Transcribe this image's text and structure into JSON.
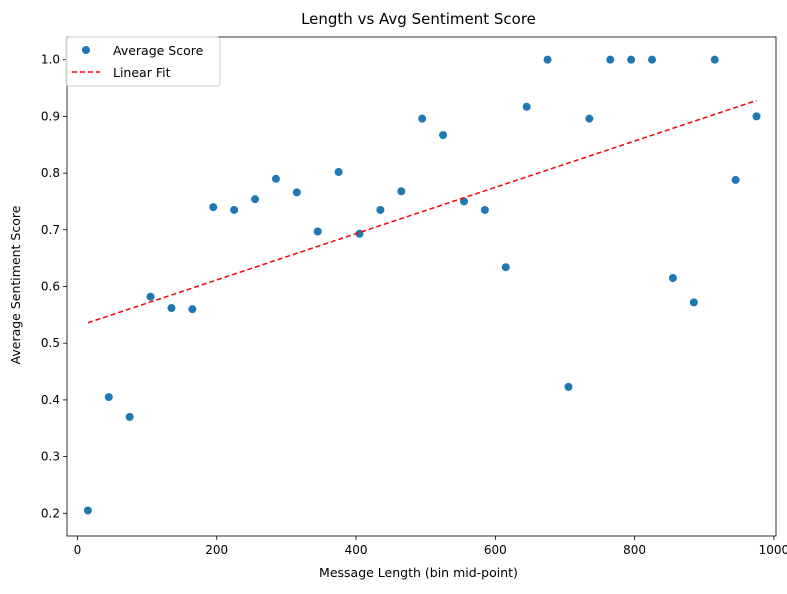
{
  "chart_data": {
    "type": "scatter",
    "title": "Length vs Avg Sentiment Score",
    "xlabel": "Message Length (bin mid-point)",
    "ylabel": "Average Sentiment Score",
    "xlim": [
      -15,
      1003
    ],
    "ylim": [
      0.16,
      1.04
    ],
    "xticks": [
      0,
      200,
      400,
      600,
      800,
      1000
    ],
    "yticks": [
      0.2,
      0.3,
      0.4,
      0.5,
      0.6,
      0.7,
      0.8,
      0.9,
      1.0
    ],
    "xtick_labels": [
      "0",
      "200",
      "400",
      "600",
      "800",
      "1000"
    ],
    "ytick_labels": [
      "0.2",
      "0.3",
      "0.4",
      "0.5",
      "0.6",
      "0.7",
      "0.8",
      "0.9",
      "1.0"
    ],
    "grid": false,
    "legend_position": "top-left",
    "series": [
      {
        "name": "Average Score",
        "kind": "scatter",
        "color": "#1f77b4",
        "points": [
          [
            15,
            0.205
          ],
          [
            45,
            0.405
          ],
          [
            75,
            0.37
          ],
          [
            105,
            0.582
          ],
          [
            135,
            0.562
          ],
          [
            165,
            0.56
          ],
          [
            195,
            0.74
          ],
          [
            225,
            0.735
          ],
          [
            255,
            0.754
          ],
          [
            285,
            0.79
          ],
          [
            315,
            0.766
          ],
          [
            345,
            0.697
          ],
          [
            375,
            0.802
          ],
          [
            405,
            0.693
          ],
          [
            435,
            0.735
          ],
          [
            465,
            0.768
          ],
          [
            495,
            0.896
          ],
          [
            525,
            0.867
          ],
          [
            555,
            0.75
          ],
          [
            585,
            0.735
          ],
          [
            615,
            0.634
          ],
          [
            645,
            0.917
          ],
          [
            675,
            1.0
          ],
          [
            705,
            0.423
          ],
          [
            735,
            0.896
          ],
          [
            765,
            1.0
          ],
          [
            795,
            1.0
          ],
          [
            825,
            1.0
          ],
          [
            855,
            0.615
          ],
          [
            885,
            0.572
          ],
          [
            915,
            1.0
          ],
          [
            945,
            0.788
          ],
          [
            975,
            0.9
          ]
        ]
      },
      {
        "name": "Linear Fit",
        "kind": "line",
        "color": "#ff0000",
        "dashed": true,
        "points": [
          [
            15,
            0.536
          ],
          [
            975,
            0.928
          ]
        ]
      }
    ]
  }
}
